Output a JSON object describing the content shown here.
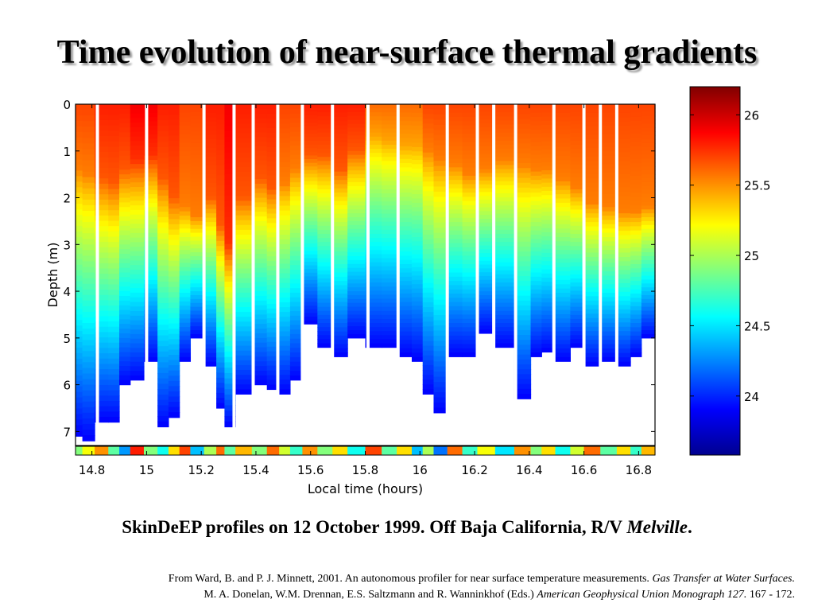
{
  "slide": {
    "title": "Time evolution of near-surface thermal gradients",
    "caption_main": "SkinDeEP profiles on 12 October 1999. Off Baja California,  R/V ",
    "caption_vessel": "Melville",
    "caption_end": ".",
    "citation_line1_a": "From  Ward, B. and P. J. Minnett, 2001. An autonomous profiler for near surface temperature measurements. ",
    "citation_line1_b": "Gas Transfer at Water Surfaces.",
    "citation_line2_a": "M. A. Donelan, W.M. Drennan, E.S. Saltzmann and R. Wanninkhof (Eds.) ",
    "citation_line2_b": "American Geophysical Union Monograph 127.",
    "citation_line2_c": " 167 - 172."
  },
  "chart_data": {
    "type": "heatmap",
    "xlabel": "Local time (hours)",
    "ylabel": "Depth (m)",
    "xlim": [
      14.74,
      16.86
    ],
    "ylim": [
      0,
      7.3
    ],
    "x_ticks": [
      14.8,
      15,
      15.2,
      15.4,
      15.6,
      15.8,
      16,
      16.2,
      16.4,
      16.6,
      16.8
    ],
    "x_tick_labels": [
      "14.8",
      "15",
      "15.2",
      "15.4",
      "15.6",
      "15.8",
      "16",
      "16.2",
      "16.4",
      "16.6",
      "16.8"
    ],
    "y_ticks": [
      0,
      1,
      2,
      3,
      4,
      5,
      6,
      7
    ],
    "y_tick_labels": [
      "0",
      "1",
      "2",
      "3",
      "4",
      "5",
      "6",
      "7"
    ],
    "colorbar": {
      "min": 23.58,
      "max": 26.2,
      "ticks": [
        24,
        24.5,
        25,
        25.5,
        26
      ],
      "tick_labels": [
        "24",
        "24.5",
        "25",
        "25.5",
        "26"
      ]
    },
    "colormap": [
      "#00008f",
      "#0000ff",
      "#0080ff",
      "#00ffff",
      "#80ff80",
      "#ffff00",
      "#ff8000",
      "#ff0000",
      "#800000"
    ],
    "profile_gaps_hours": [
      14.82,
      15.0,
      15.21,
      15.32,
      15.39,
      15.48,
      15.57,
      15.68,
      15.81,
      15.92,
      16.1,
      16.21,
      16.27,
      16.35,
      16.49,
      16.6,
      16.66,
      16.72
    ],
    "profiles": [
      {
        "time": 14.75,
        "max_depth": 7.1,
        "mixed_depth": 1.4,
        "surface_temp": 25.7,
        "surface_strip_temp": 24.9
      },
      {
        "time": 14.78,
        "max_depth": 7.2,
        "mixed_depth": 1.5,
        "surface_temp": 25.7,
        "surface_strip_temp": 25.2
      },
      {
        "time": 14.84,
        "max_depth": 6.8,
        "mixed_depth": 1.6,
        "surface_temp": 25.8,
        "surface_strip_temp": 25.5
      },
      {
        "time": 14.88,
        "max_depth": 6.8,
        "mixed_depth": 1.7,
        "surface_temp": 25.8,
        "surface_strip_temp": 24.8
      },
      {
        "time": 14.92,
        "max_depth": 6.0,
        "mixed_depth": 1.4,
        "surface_temp": 25.8,
        "surface_strip_temp": 24.3
      },
      {
        "time": 14.96,
        "max_depth": 5.9,
        "mixed_depth": 1.2,
        "surface_temp": 25.9,
        "surface_strip_temp": 25.8
      },
      {
        "time": 15.02,
        "max_depth": 5.5,
        "mixed_depth": 1.1,
        "surface_temp": 25.9,
        "surface_strip_temp": 24.9
      },
      {
        "time": 15.06,
        "max_depth": 6.9,
        "mixed_depth": 1.6,
        "surface_temp": 25.8,
        "surface_strip_temp": 24.6
      },
      {
        "time": 15.1,
        "max_depth": 6.7,
        "mixed_depth": 2.0,
        "surface_temp": 25.8,
        "surface_strip_temp": 25.3
      },
      {
        "time": 15.14,
        "max_depth": 5.5,
        "mixed_depth": 2.2,
        "surface_temp": 25.7,
        "surface_strip_temp": 25.7
      },
      {
        "time": 15.18,
        "max_depth": 5.0,
        "mixed_depth": 2.4,
        "surface_temp": 25.7,
        "surface_strip_temp": 24.4
      },
      {
        "time": 15.24,
        "max_depth": 5.6,
        "mixed_depth": 2.0,
        "surface_temp": 25.8,
        "surface_strip_temp": 25.0
      },
      {
        "time": 15.27,
        "max_depth": 6.5,
        "mixed_depth": 2.6,
        "surface_temp": 25.8,
        "surface_strip_temp": 25.6
      },
      {
        "time": 15.3,
        "max_depth": 6.9,
        "mixed_depth": 3.0,
        "surface_temp": 25.9,
        "surface_strip_temp": 24.8
      },
      {
        "time": 15.35,
        "max_depth": 6.2,
        "mixed_depth": 2.0,
        "surface_temp": 25.8,
        "surface_strip_temp": 25.4
      },
      {
        "time": 15.42,
        "max_depth": 6.0,
        "mixed_depth": 1.6,
        "surface_temp": 25.8,
        "surface_strip_temp": 24.9
      },
      {
        "time": 15.46,
        "max_depth": 6.1,
        "mixed_depth": 1.8,
        "surface_temp": 25.8,
        "surface_strip_temp": 25.6
      },
      {
        "time": 15.51,
        "max_depth": 6.2,
        "mixed_depth": 1.7,
        "surface_temp": 25.7,
        "surface_strip_temp": 25.1
      },
      {
        "time": 15.54,
        "max_depth": 5.9,
        "mixed_depth": 1.4,
        "surface_temp": 25.7,
        "surface_strip_temp": 24.7
      },
      {
        "time": 15.6,
        "max_depth": 4.7,
        "mixed_depth": 1.1,
        "surface_temp": 25.8,
        "surface_strip_temp": 25.5
      },
      {
        "time": 15.65,
        "max_depth": 5.2,
        "mixed_depth": 1.1,
        "surface_temp": 25.8,
        "surface_strip_temp": 24.9
      },
      {
        "time": 15.71,
        "max_depth": 5.4,
        "mixed_depth": 1.4,
        "surface_temp": 25.8,
        "surface_strip_temp": 25.3
      },
      {
        "time": 15.76,
        "max_depth": 5.0,
        "mixed_depth": 1.0,
        "surface_temp": 25.8,
        "surface_strip_temp": 24.6
      },
      {
        "time": 15.84,
        "max_depth": 5.2,
        "mixed_depth": 0.7,
        "surface_temp": 25.6,
        "surface_strip_temp": 25.7
      },
      {
        "time": 15.88,
        "max_depth": 5.2,
        "mixed_depth": 0.8,
        "surface_temp": 25.6,
        "surface_strip_temp": 24.8
      },
      {
        "time": 15.95,
        "max_depth": 5.4,
        "mixed_depth": 0.9,
        "surface_temp": 25.6,
        "surface_strip_temp": 25.3
      },
      {
        "time": 15.99,
        "max_depth": 5.5,
        "mixed_depth": 0.9,
        "surface_temp": 25.6,
        "surface_strip_temp": 24.4
      },
      {
        "time": 16.03,
        "max_depth": 6.2,
        "mixed_depth": 1.0,
        "surface_temp": 25.7,
        "surface_strip_temp": 25.0
      },
      {
        "time": 16.07,
        "max_depth": 6.6,
        "mixed_depth": 1.2,
        "surface_temp": 25.7,
        "surface_strip_temp": 24.2
      },
      {
        "time": 16.13,
        "max_depth": 5.4,
        "mixed_depth": 1.3,
        "surface_temp": 25.7,
        "surface_strip_temp": 25.6
      },
      {
        "time": 16.18,
        "max_depth": 5.4,
        "mixed_depth": 1.5,
        "surface_temp": 25.7,
        "surface_strip_temp": 24.7
      },
      {
        "time": 16.24,
        "max_depth": 4.9,
        "mixed_depth": 1.4,
        "surface_temp": 25.7,
        "surface_strip_temp": 25.2
      },
      {
        "time": 16.31,
        "max_depth": 5.2,
        "mixed_depth": 1.2,
        "surface_temp": 25.7,
        "surface_strip_temp": 24.5
      },
      {
        "time": 16.38,
        "max_depth": 6.3,
        "mixed_depth": 1.3,
        "surface_temp": 25.7,
        "surface_strip_temp": 25.5
      },
      {
        "time": 16.43,
        "max_depth": 5.4,
        "mixed_depth": 1.4,
        "surface_temp": 25.7,
        "surface_strip_temp": 24.9
      },
      {
        "time": 16.46,
        "max_depth": 5.3,
        "mixed_depth": 1.4,
        "surface_temp": 25.7,
        "surface_strip_temp": 25.3
      },
      {
        "time": 16.53,
        "max_depth": 5.5,
        "mixed_depth": 1.6,
        "surface_temp": 25.7,
        "surface_strip_temp": 24.6
      },
      {
        "time": 16.57,
        "max_depth": 5.2,
        "mixed_depth": 1.8,
        "surface_temp": 25.7,
        "surface_strip_temp": 25.1
      },
      {
        "time": 16.63,
        "max_depth": 5.6,
        "mixed_depth": 2.1,
        "surface_temp": 25.7,
        "surface_strip_temp": 25.6
      },
      {
        "time": 16.69,
        "max_depth": 5.5,
        "mixed_depth": 2.2,
        "surface_temp": 25.7,
        "surface_strip_temp": 24.8
      },
      {
        "time": 16.75,
        "max_depth": 5.6,
        "mixed_depth": 2.3,
        "surface_temp": 25.7,
        "surface_strip_temp": 25.3
      },
      {
        "time": 16.79,
        "max_depth": 5.4,
        "mixed_depth": 2.3,
        "surface_temp": 25.7,
        "surface_strip_temp": 24.7
      },
      {
        "time": 16.83,
        "max_depth": 5.0,
        "mixed_depth": 2.2,
        "surface_temp": 25.7,
        "surface_strip_temp": 25.4
      }
    ]
  }
}
